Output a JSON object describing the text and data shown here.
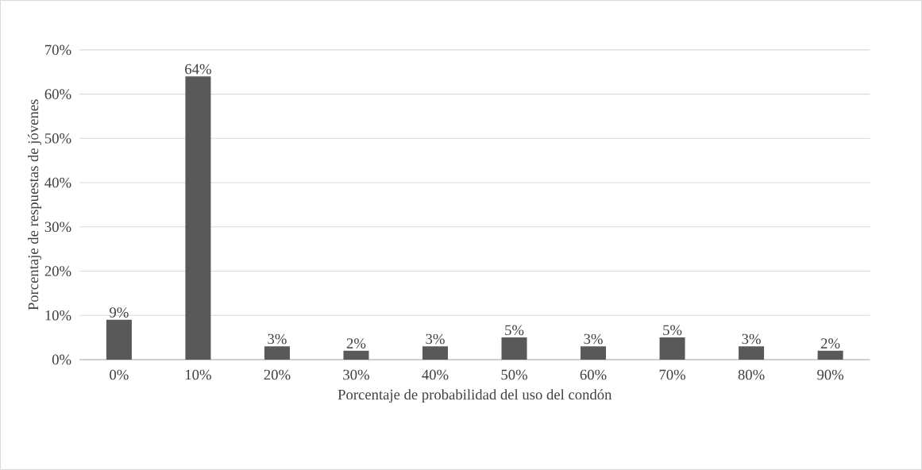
{
  "chart_data": {
    "type": "bar",
    "xlabel": "Porcentaje de probabilidad del uso del condón",
    "ylabel": "Porcentaje de respuestas de jóvenes",
    "categories": [
      "0%",
      "10%",
      "20%",
      "30%",
      "40%",
      "50%",
      "60%",
      "70%",
      "80%",
      "90%"
    ],
    "values": [
      9,
      64,
      3,
      2,
      3,
      5,
      3,
      5,
      3,
      2
    ],
    "value_labels": [
      "9%",
      "64%",
      "3%",
      "2%",
      "3%",
      "5%",
      "3%",
      "5%",
      "3%",
      "2%"
    ],
    "color": "#595959",
    "ylim": [
      0,
      70
    ],
    "yticks": [
      {
        "value": 0,
        "label": "0%"
      },
      {
        "value": 10,
        "label": "10%"
      },
      {
        "value": 20,
        "label": "20%"
      },
      {
        "value": 30,
        "label": "30%"
      },
      {
        "value": 40,
        "label": "40%"
      },
      {
        "value": 50,
        "label": "50%"
      },
      {
        "value": 60,
        "label": "60%"
      },
      {
        "value": 70,
        "label": "70%"
      }
    ],
    "grid": "y"
  }
}
